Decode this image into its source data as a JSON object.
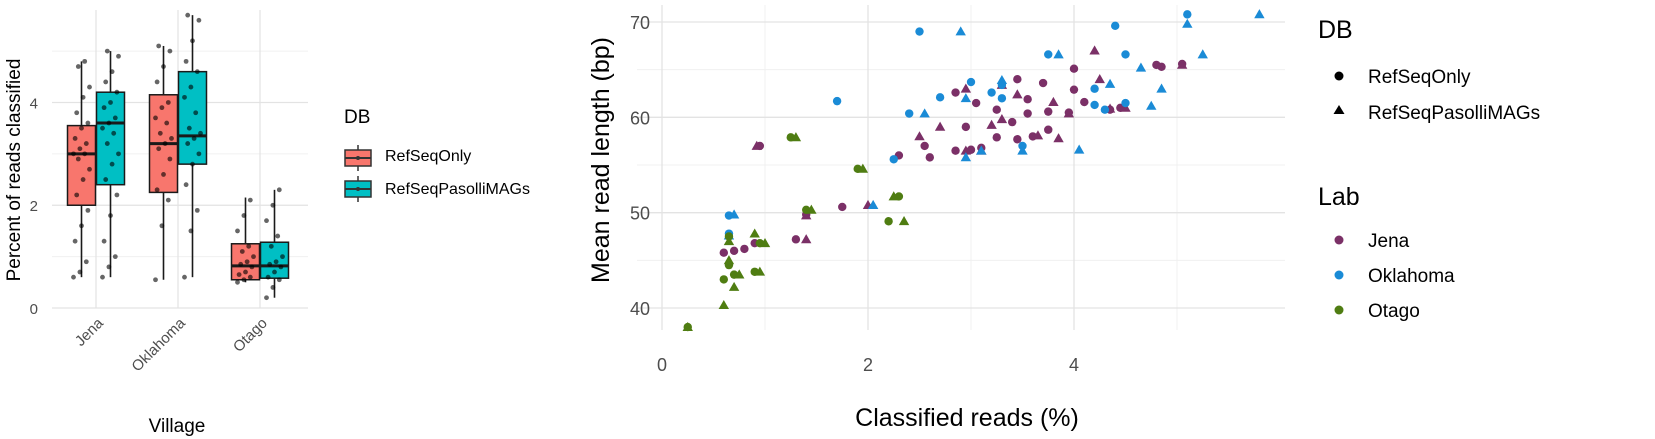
{
  "chart_data": [
    {
      "type": "box",
      "xlabel": "Village",
      "ylabel": "Percent of reads classified",
      "categories": [
        "Jena",
        "Oklahoma",
        "Otago"
      ],
      "y_ticks": [
        0,
        2,
        4
      ],
      "ylim": [
        0,
        5.8
      ],
      "grid": true,
      "legend": {
        "title": "DB",
        "position": "right",
        "entries": [
          {
            "label": "RefSeqOnly",
            "color": "#F8766D"
          },
          {
            "label": "RefSeqPasolliMAGs",
            "color": "#00BFC4"
          }
        ]
      },
      "series": [
        {
          "name": "RefSeqOnly",
          "color": "#F8766D",
          "boxes": [
            {
              "category": "Jena",
              "min": 0.6,
              "q1": 2.0,
              "median": 3.0,
              "q3": 3.55,
              "max": 4.8,
              "points": [
                0.6,
                0.7,
                0.9,
                1.3,
                1.6,
                1.9,
                2.2,
                2.5,
                2.7,
                2.9,
                3.0,
                3.0,
                3.1,
                3.2,
                3.3,
                3.5,
                3.6,
                3.8,
                4.1,
                4.3,
                4.7,
                4.8
              ]
            },
            {
              "category": "Oklahoma",
              "min": 0.55,
              "q1": 2.25,
              "median": 3.2,
              "q3": 4.15,
              "max": 5.1,
              "points": [
                0.55,
                1.6,
                2.1,
                2.3,
                2.6,
                2.9,
                3.1,
                3.2,
                3.3,
                3.4,
                3.6,
                3.7,
                3.9,
                4.0,
                4.4,
                4.7,
                5.0,
                5.1
              ]
            },
            {
              "category": "Otago",
              "min": 0.5,
              "q1": 0.55,
              "median": 0.82,
              "q3": 1.25,
              "max": 2.15,
              "points": [
                0.5,
                0.55,
                0.6,
                0.65,
                0.7,
                0.8,
                0.85,
                0.9,
                1.0,
                1.1,
                1.2,
                1.5,
                1.8,
                2.1
              ]
            }
          ]
        },
        {
          "name": "RefSeqPasolliMAGs",
          "color": "#00BFC4",
          "boxes": [
            {
              "category": "Jena",
              "min": 0.6,
              "q1": 2.4,
              "median": 3.6,
              "q3": 4.2,
              "max": 5.0,
              "points": [
                0.6,
                0.8,
                1.0,
                1.3,
                1.8,
                2.2,
                2.5,
                2.8,
                3.0,
                3.2,
                3.4,
                3.5,
                3.6,
                3.7,
                3.9,
                4.0,
                4.2,
                4.4,
                4.6,
                4.9,
                5.0
              ]
            },
            {
              "category": "Oklahoma",
              "min": 0.6,
              "q1": 2.8,
              "median": 3.35,
              "q3": 4.6,
              "max": 5.7,
              "points": [
                0.6,
                1.5,
                1.9,
                2.4,
                2.8,
                3.0,
                3.2,
                3.3,
                3.4,
                3.5,
                3.8,
                4.1,
                4.3,
                4.6,
                4.8,
                5.2,
                5.6,
                5.7
              ]
            },
            {
              "category": "Otago",
              "min": 0.2,
              "q1": 0.58,
              "median": 0.82,
              "q3": 1.28,
              "max": 2.3,
              "points": [
                0.2,
                0.4,
                0.55,
                0.6,
                0.7,
                0.8,
                0.85,
                0.9,
                1.0,
                1.2,
                1.4,
                1.7,
                2.0,
                2.3
              ]
            }
          ]
        }
      ]
    },
    {
      "type": "scatter",
      "xlabel": "Classified reads (%)",
      "ylabel": "Mean read length (bp)",
      "x_ticks": [
        0,
        2,
        4
      ],
      "y_ticks": [
        40,
        50,
        60,
        70
      ],
      "xlim": [
        0,
        6.1
      ],
      "ylim": [
        37.5,
        71.5
      ],
      "grid": true,
      "legend_shape": {
        "title": "DB",
        "position": "top-right",
        "entries": [
          {
            "label": "RefSeqOnly",
            "shape": "circle"
          },
          {
            "label": "RefSeqPasolliMAGs",
            "shape": "triangle"
          }
        ]
      },
      "legend_color": {
        "title": "Lab",
        "position": "right",
        "entries": [
          {
            "label": "Jena",
            "color": "#7B3067"
          },
          {
            "label": "Oklahoma",
            "color": "#1A8BD6"
          },
          {
            "label": "Otago",
            "color": "#4F7D12"
          }
        ]
      },
      "series": [
        {
          "lab": "Jena",
          "db": "RefSeqOnly",
          "color": "#7B3067",
          "shape": "circle",
          "points": [
            [
              0.95,
              57.0
            ],
            [
              0.6,
              45.8
            ],
            [
              0.7,
              46.0
            ],
            [
              0.8,
              46.2
            ],
            [
              0.9,
              46.8
            ],
            [
              1.3,
              47.2
            ],
            [
              1.4,
              49.8
            ],
            [
              1.75,
              50.6
            ],
            [
              2.3,
              56.0
            ],
            [
              2.6,
              55.8
            ],
            [
              2.85,
              56.5
            ],
            [
              3.0,
              56.6
            ],
            [
              3.1,
              56.8
            ],
            [
              3.25,
              57.9
            ],
            [
              3.4,
              59.5
            ],
            [
              3.45,
              57.7
            ],
            [
              3.6,
              58.0
            ],
            [
              3.75,
              58.7
            ],
            [
              3.55,
              60.4
            ],
            [
              3.55,
              61.9
            ],
            [
              3.75,
              60.6
            ],
            [
              3.95,
              60.5
            ],
            [
              3.45,
              64.0
            ],
            [
              3.7,
              63.6
            ],
            [
              4.0,
              62.9
            ],
            [
              4.1,
              61.6
            ],
            [
              4.35,
              60.8
            ],
            [
              4.45,
              61.0
            ],
            [
              4.8,
              65.5
            ],
            [
              4.85,
              65.3
            ],
            [
              5.05,
              65.6
            ],
            [
              3.05,
              61.5
            ],
            [
              2.55,
              57.0
            ],
            [
              2.85,
              62.6
            ],
            [
              2.95,
              59.0
            ],
            [
              3.25,
              60.8
            ],
            [
              4.0,
              65.1
            ]
          ]
        },
        {
          "lab": "Jena",
          "db": "RefSeqPasolliMAGs",
          "color": "#7B3067",
          "shape": "triangle",
          "points": [
            [
              0.92,
              57.0
            ],
            [
              1.4,
              47.2
            ],
            [
              1.4,
              49.7
            ],
            [
              2.0,
              50.8
            ],
            [
              2.5,
              58.0
            ],
            [
              2.7,
              59.0
            ],
            [
              2.95,
              56.5
            ],
            [
              3.1,
              56.5
            ],
            [
              3.2,
              59.2
            ],
            [
              3.3,
              59.8
            ],
            [
              3.45,
              62.4
            ],
            [
              3.65,
              58.1
            ],
            [
              3.8,
              61.6
            ],
            [
              3.95,
              60.4
            ],
            [
              4.2,
              67.0
            ],
            [
              4.25,
              64.0
            ],
            [
              4.35,
              60.9
            ],
            [
              4.5,
              61.0
            ],
            [
              5.05,
              65.5
            ],
            [
              3.85,
              57.8
            ],
            [
              2.95,
              63.0
            ],
            [
              3.3,
              63.4
            ]
          ]
        },
        {
          "lab": "Oklahoma",
          "db": "RefSeqOnly",
          "color": "#1A8BD6",
          "shape": "circle",
          "points": [
            [
              0.65,
              49.7
            ],
            [
              0.65,
              47.8
            ],
            [
              1.7,
              61.7
            ],
            [
              2.25,
              55.6
            ],
            [
              2.4,
              60.4
            ],
            [
              2.5,
              69.0
            ],
            [
              2.7,
              62.1
            ],
            [
              3.0,
              63.7
            ],
            [
              3.2,
              62.6
            ],
            [
              3.3,
              63.4
            ],
            [
              3.5,
              57.0
            ],
            [
              3.75,
              66.6
            ],
            [
              4.2,
              63.0
            ],
            [
              4.2,
              61.3
            ],
            [
              4.3,
              60.8
            ],
            [
              4.4,
              69.6
            ],
            [
              4.5,
              66.6
            ],
            [
              4.5,
              61.5
            ],
            [
              5.1,
              70.8
            ],
            [
              3.3,
              62.0
            ]
          ]
        },
        {
          "lab": "Oklahoma",
          "db": "RefSeqPasolliMAGs",
          "color": "#1A8BD6",
          "shape": "triangle",
          "points": [
            [
              0.7,
              49.8
            ],
            [
              0.65,
              47.6
            ],
            [
              2.05,
              50.8
            ],
            [
              2.55,
              60.4
            ],
            [
              2.9,
              69.0
            ],
            [
              2.95,
              62.0
            ],
            [
              2.95,
              55.8
            ],
            [
              3.1,
              56.5
            ],
            [
              3.3,
              63.9
            ],
            [
              3.5,
              56.5
            ],
            [
              3.85,
              66.6
            ],
            [
              4.05,
              56.6
            ],
            [
              4.35,
              63.5
            ],
            [
              4.65,
              65.2
            ],
            [
              4.75,
              61.2
            ],
            [
              4.85,
              63.0
            ],
            [
              5.1,
              69.8
            ],
            [
              5.25,
              66.6
            ],
            [
              5.8,
              70.8
            ]
          ]
        },
        {
          "lab": "Otago",
          "db": "RefSeqOnly",
          "color": "#4F7D12",
          "shape": "circle",
          "points": [
            [
              0.25,
              38.0
            ],
            [
              0.6,
              43.0
            ],
            [
              0.65,
              44.5
            ],
            [
              0.7,
              43.5
            ],
            [
              0.65,
              47.5
            ],
            [
              0.9,
              43.8
            ],
            [
              0.95,
              46.8
            ],
            [
              1.25,
              57.9
            ],
            [
              1.4,
              50.3
            ],
            [
              1.9,
              54.6
            ],
            [
              2.2,
              49.1
            ],
            [
              2.3,
              51.7
            ]
          ]
        },
        {
          "lab": "Otago",
          "db": "RefSeqPasolliMAGs",
          "color": "#4F7D12",
          "shape": "triangle",
          "points": [
            [
              0.25,
              38.0
            ],
            [
              0.6,
              40.3
            ],
            [
              0.65,
              45.0
            ],
            [
              0.7,
              42.2
            ],
            [
              0.65,
              47.0
            ],
            [
              0.75,
              43.5
            ],
            [
              0.95,
              43.8
            ],
            [
              0.9,
              47.8
            ],
            [
              1.0,
              46.8
            ],
            [
              1.3,
              57.9
            ],
            [
              1.45,
              50.3
            ],
            [
              1.95,
              54.6
            ],
            [
              2.25,
              51.7
            ],
            [
              2.35,
              49.1
            ]
          ]
        }
      ]
    }
  ]
}
